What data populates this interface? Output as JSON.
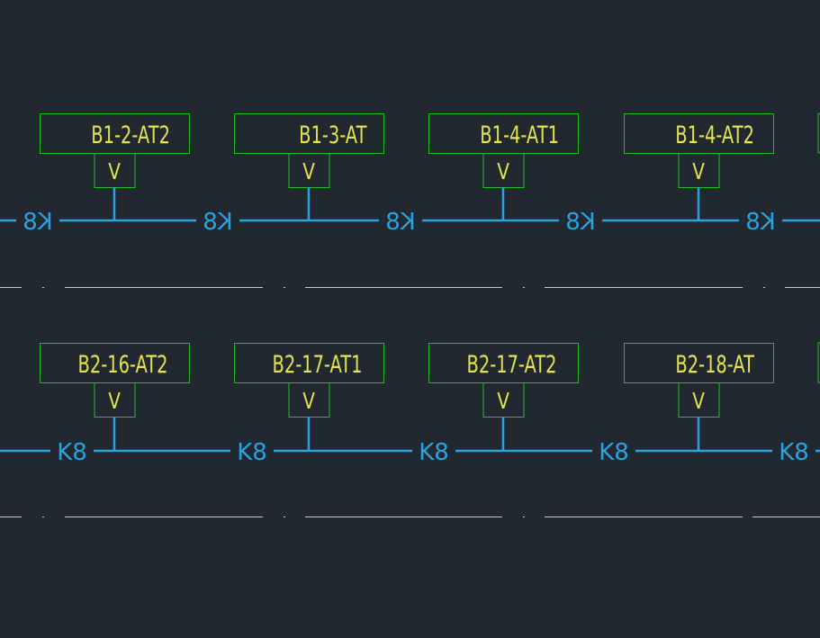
{
  "palette": {
    "background": "#212830",
    "box_stroke": "#20c020",
    "label_text": "#e4e44a",
    "wire": "#2aa2de",
    "separator": "#c8c8c8"
  },
  "rows": [
    {
      "units": [
        {
          "label": "B1-2-AT2",
          "sub": "V"
        },
        {
          "label": "B1-3-AT",
          "sub": "V"
        },
        {
          "label": "B1-4-AT1",
          "sub": "V"
        },
        {
          "label": "B1-4-AT2",
          "sub": "V"
        }
      ],
      "connectors": [
        "K8",
        "K8",
        "K8",
        "K8",
        "K8"
      ],
      "connector_style": "mirrored"
    },
    {
      "units": [
        {
          "label": "B2-16-AT2",
          "sub": "V"
        },
        {
          "label": "B2-17-AT1",
          "sub": "V"
        },
        {
          "label": "B2-17-AT2",
          "sub": "V"
        },
        {
          "label": "B2-18-AT",
          "sub": "V"
        }
      ],
      "connectors": [
        "K8",
        "K8",
        "K8",
        "K8",
        "K8"
      ],
      "connector_style": "normal"
    }
  ]
}
